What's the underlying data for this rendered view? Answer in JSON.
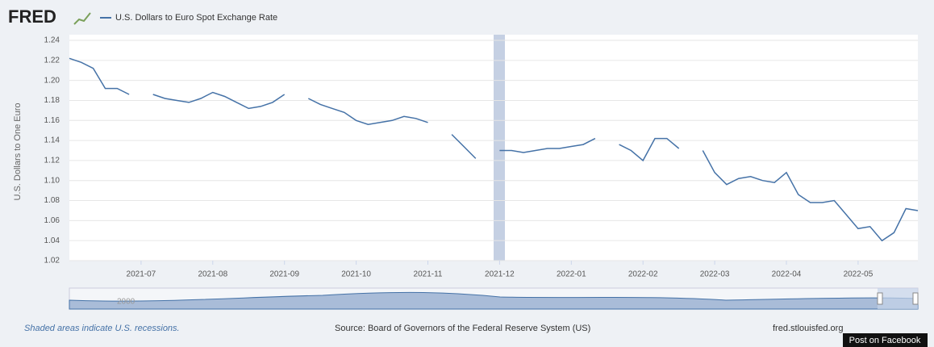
{
  "header": {
    "logo": "FRED"
  },
  "chart_data": {
    "type": "line",
    "ylabel": "U.S. Dollars to One Euro",
    "categories": [
      null,
      null,
      null,
      null,
      null,
      null,
      "2021-07",
      null,
      null,
      null,
      null,
      null,
      "2021-08",
      null,
      null,
      null,
      null,
      null,
      "2021-09",
      null,
      null,
      null,
      null,
      null,
      "2021-10",
      null,
      null,
      null,
      null,
      null,
      "2021-11",
      null,
      null,
      null,
      null,
      null,
      "2021-12",
      null,
      null,
      null,
      null,
      null,
      "2022-01",
      null,
      null,
      null,
      null,
      null,
      "2022-02",
      null,
      null,
      null,
      null,
      null,
      "2022-03",
      null,
      null,
      null,
      null,
      null,
      "2022-04",
      null,
      null,
      null,
      null,
      null,
      "2022-05",
      null,
      null,
      null,
      null,
      null
    ],
    "series": [
      {
        "name": "U.S. Dollars to Euro Spot Exchange Rate",
        "color": "#4572a7",
        "values": [
          1.222,
          1.218,
          1.212,
          1.192,
          1.192,
          1.186,
          null,
          1.186,
          1.182,
          1.18,
          1.178,
          1.182,
          1.188,
          1.184,
          1.178,
          1.172,
          1.174,
          1.178,
          1.186,
          null,
          1.182,
          1.176,
          1.172,
          1.168,
          1.16,
          1.156,
          1.158,
          1.16,
          1.164,
          1.162,
          1.158,
          null,
          1.146,
          1.134,
          1.122,
          null,
          1.13,
          1.13,
          1.128,
          1.13,
          1.132,
          1.132,
          1.134,
          1.136,
          1.142,
          null,
          1.136,
          1.13,
          1.12,
          1.142,
          1.142,
          1.132,
          null,
          1.13,
          1.108,
          1.096,
          1.102,
          1.104,
          1.1,
          1.098,
          1.108,
          1.086,
          1.078,
          1.078,
          1.08,
          1.066,
          1.052,
          1.054,
          1.04,
          1.048,
          1.072,
          1.07
        ]
      }
    ],
    "ylim": [
      1.02,
      1.24
    ],
    "yticks": [
      1.02,
      1.04,
      1.06,
      1.08,
      {
        "value": 1.1,
        "label": "1.10"
      },
      1.12,
      1.14,
      1.16,
      1.18,
      {
        "value": 1.2,
        "label": "1.20"
      },
      1.22,
      1.24
    ],
    "grid": true
  },
  "navigator": {
    "labels": [
      "2000"
    ]
  },
  "footer": {
    "note": "Shaded areas indicate U.S. recessions.",
    "source": "Source: Board of Governors of the Federal Reserve System (US)",
    "site": "fred.stlouisfed.org"
  },
  "tooltip": "Post on Facebook"
}
